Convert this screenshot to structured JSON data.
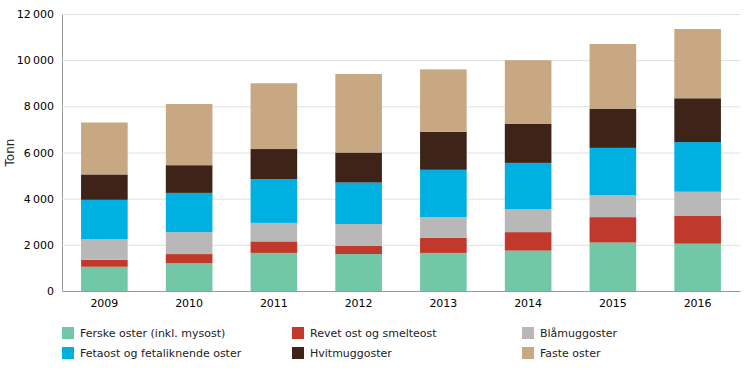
{
  "chart_data": {
    "type": "bar",
    "stacked": true,
    "categories": [
      "2009",
      "2010",
      "2011",
      "2012",
      "2013",
      "2014",
      "2015",
      "2016"
    ],
    "series": [
      {
        "name": "Ferske oster (inkl. mysost)",
        "color": "#72c7a7",
        "values": [
          1050,
          1200,
          1650,
          1600,
          1650,
          1750,
          2100,
          2050
        ]
      },
      {
        "name": "Revet ost og smelteost",
        "color": "#c0392b",
        "values": [
          300,
          400,
          500,
          350,
          650,
          800,
          1100,
          1200
        ]
      },
      {
        "name": "Blåmuggoster",
        "color": "#b8b8b8",
        "values": [
          900,
          950,
          800,
          950,
          900,
          1000,
          950,
          1050
        ]
      },
      {
        "name": "Fetaost og fetaliknende oster",
        "color": "#00b0e0",
        "values": [
          1700,
          1700,
          1900,
          1800,
          2050,
          2000,
          2050,
          2150
        ]
      },
      {
        "name": "Hvitmuggoster",
        "color": "#3d2318",
        "values": [
          1100,
          1200,
          1300,
          1300,
          1650,
          1700,
          1700,
          1900
        ]
      },
      {
        "name": "Faste oster",
        "color": "#c8a882",
        "values": [
          2250,
          2650,
          2850,
          3400,
          2700,
          2750,
          2800,
          3000
        ]
      }
    ],
    "ylabel": "Tonn",
    "ylim": [
      0,
      12000
    ],
    "yticks": [
      0,
      {
        "value": 2000,
        "label": "2 000"
      },
      {
        "value": 4000,
        "label": "4 000"
      },
      {
        "value": 6000,
        "label": "6 000"
      },
      {
        "value": 8000,
        "label": "8 000"
      },
      {
        "value": 10000,
        "label": "10 000"
      },
      {
        "value": 12000,
        "label": "12 000"
      }
    ],
    "grid": true,
    "legend": "bottom"
  }
}
